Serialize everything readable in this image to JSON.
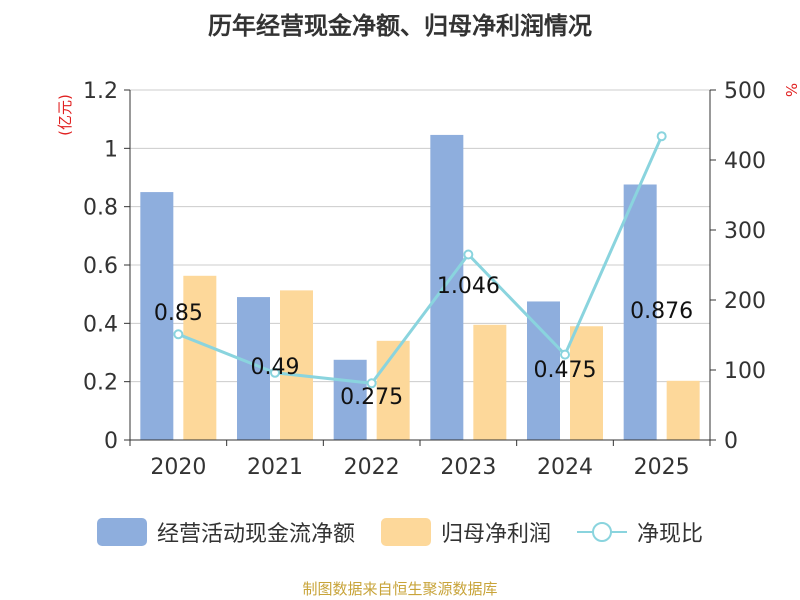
{
  "chart_data": {
    "type": "bar",
    "title": "历年经营现金净额、归母净利润情况",
    "categories": [
      "2020",
      "2021",
      "2022",
      "2023",
      "2024",
      "2025"
    ],
    "series": [
      {
        "name": "经营活动现金流净额",
        "type": "bar",
        "axis": "left",
        "color": "#8eaedd",
        "values": [
          0.85,
          0.49,
          0.275,
          1.046,
          0.475,
          0.876
        ]
      },
      {
        "name": "归母净利润",
        "type": "bar",
        "axis": "left",
        "color": "#fdd89a",
        "values": [
          0.563,
          0.513,
          0.34,
          0.395,
          0.39,
          0.203
        ]
      },
      {
        "name": "净现比",
        "type": "line",
        "axis": "right",
        "color": "#8ad4de",
        "values": [
          151,
          96,
          81,
          265,
          122,
          434
        ]
      }
    ],
    "data_labels": [
      "0.85",
      "0.49",
      "0.275",
      "1.046",
      "0.475",
      "0.876"
    ],
    "left_axis": {
      "label": "(亿元)",
      "ylim": [
        0,
        1.2
      ],
      "ticks": [
        "0",
        "0.2",
        "0.4",
        "0.6",
        "0.8",
        "1",
        "1.2"
      ]
    },
    "right_axis": {
      "label": "%",
      "ylim": [
        0,
        500
      ],
      "ticks": [
        "0",
        "100",
        "200",
        "300",
        "400",
        "500"
      ]
    },
    "grid": true,
    "legend_position": "bottom"
  },
  "source_note": "制图数据来自恒生聚源数据库"
}
